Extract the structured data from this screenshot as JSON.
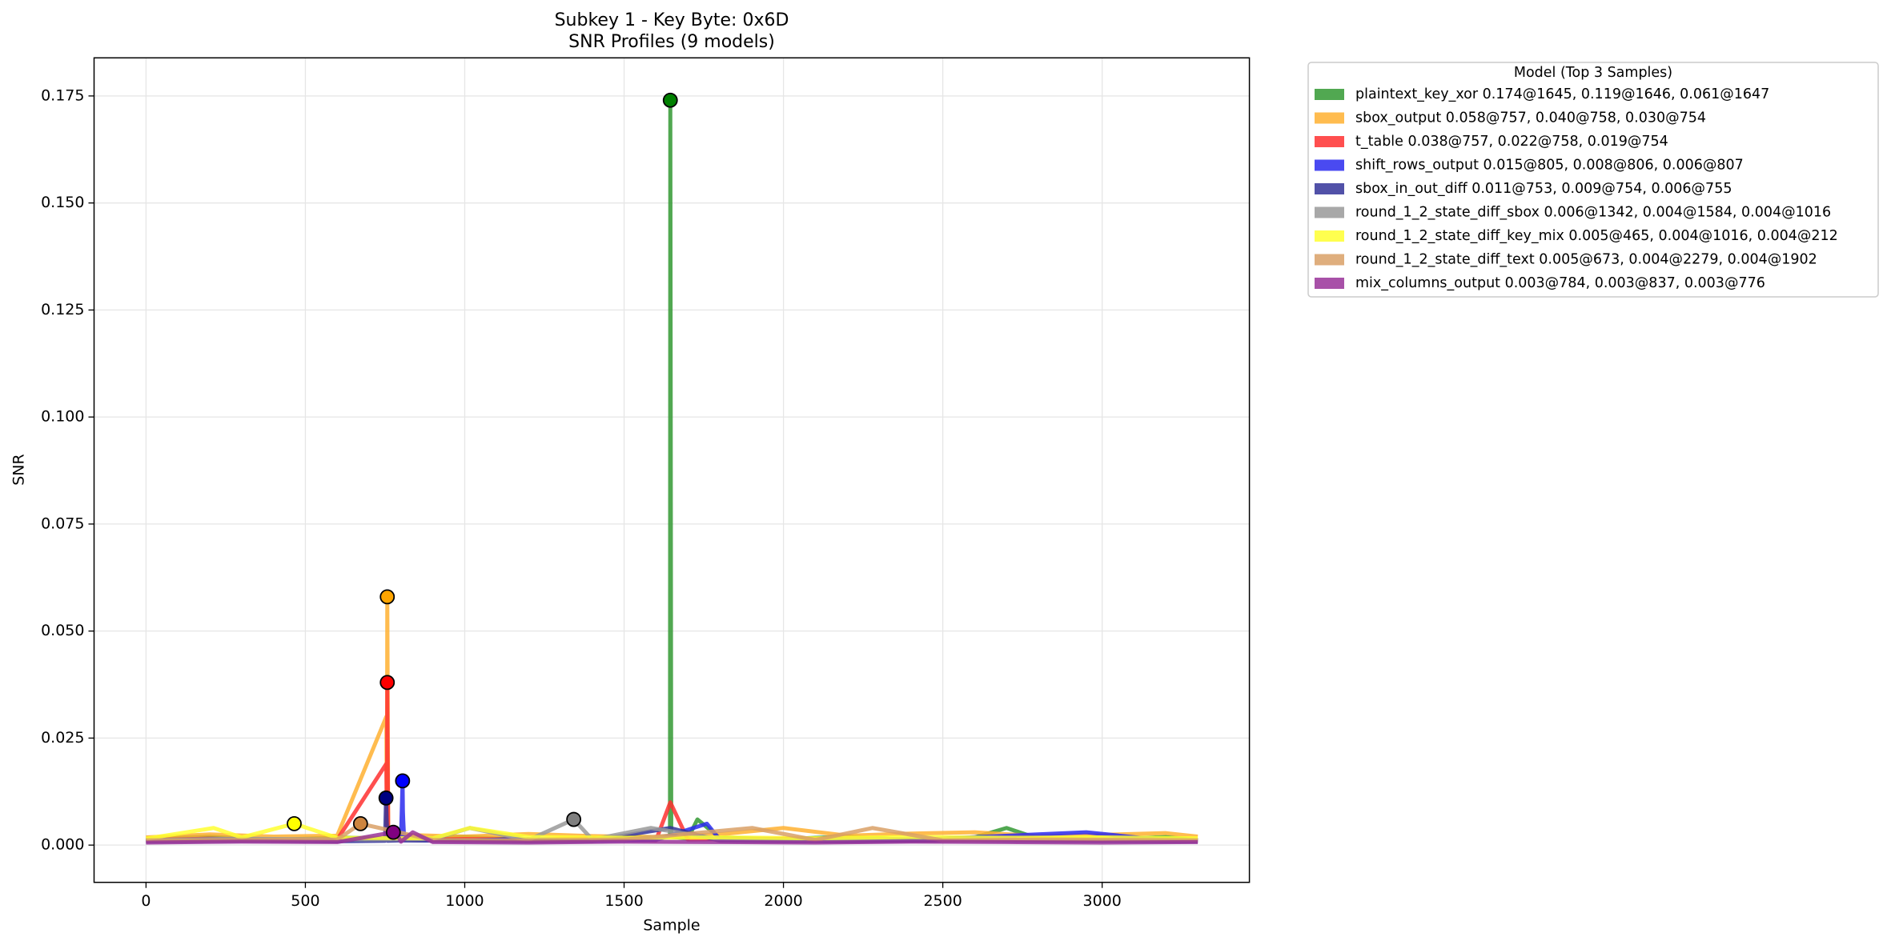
{
  "chart_data": {
    "type": "line",
    "title": "Subkey 1 - Key Byte: 0x6D",
    "subtitle": "SNR Profiles (9 models)",
    "x_label": "Sample",
    "y_label": "SNR",
    "legend_title": "Model (Top 3 Samples)",
    "legend_position": "outside-right",
    "grid": true,
    "xlim": [
      -163,
      3462
    ],
    "ylim": [
      -0.0087,
      0.1839
    ],
    "xticks": [
      0,
      500,
      1000,
      1500,
      2000,
      2500,
      3000
    ],
    "yticks": [
      {
        "value": 0,
        "label": "0.000"
      },
      0.025,
      {
        "value": 0.05,
        "label": "0.050"
      },
      0.075,
      {
        "value": 0.1,
        "label": "0.100"
      },
      0.125,
      {
        "value": 0.15,
        "label": "0.150"
      },
      0.175
    ],
    "series": [
      {
        "name": "plaintext_key_xor 0.174@1645, 0.119@1646, 0.061@1647",
        "color": "#339933",
        "marker_color": "#008000",
        "x": [
          0,
          200,
          400,
          600,
          800,
          1000,
          1200,
          1400,
          1600,
          1644,
          1645,
          1646,
          1647,
          1648,
          1700,
          1730,
          1800,
          2000,
          2200,
          2400,
          2600,
          2700,
          2800,
          3000,
          3200,
          3300
        ],
        "values": [
          0.0015,
          0.002,
          0.0012,
          0.0018,
          0.0014,
          0.002,
          0.0011,
          0.0016,
          0.0019,
          0.002,
          0.174,
          0.119,
          0.061,
          0.002,
          0.0015,
          0.006,
          0.0017,
          0.0014,
          0.002,
          0.0012,
          0.0018,
          0.004,
          0.0015,
          0.0013,
          0.0019,
          0.0012
        ]
      },
      {
        "name": "sbox_output 0.058@757, 0.040@758, 0.030@754",
        "color": "#ffb030",
        "marker_color": "#ffa500",
        "x": [
          0,
          200,
          400,
          600,
          754,
          756,
          757,
          758,
          760,
          800,
          1000,
          1200,
          1400,
          1600,
          1800,
          2000,
          2200,
          2400,
          2600,
          2800,
          3000,
          3200,
          3300
        ],
        "values": [
          0.0018,
          0.0025,
          0.002,
          0.0022,
          0.03,
          0.002,
          0.058,
          0.04,
          0.002,
          0.0024,
          0.002,
          0.0026,
          0.0021,
          0.0019,
          0.0025,
          0.004,
          0.0022,
          0.0027,
          0.003,
          0.0021,
          0.0024,
          0.0028,
          0.002
        ]
      },
      {
        "name": "t_table 0.038@757, 0.022@758, 0.019@754",
        "color": "#ff3030",
        "marker_color": "#ff0000",
        "x": [
          0,
          200,
          400,
          600,
          754,
          756,
          757,
          758,
          760,
          800,
          1000,
          1200,
          1400,
          1600,
          1645,
          1700,
          2000,
          2400,
          2800,
          3200,
          3300
        ],
        "values": [
          0.0012,
          0.0015,
          0.0011,
          0.0013,
          0.019,
          0.002,
          0.038,
          0.022,
          0.0015,
          0.0012,
          0.0014,
          0.0013,
          0.0016,
          0.0011,
          0.01,
          0.0013,
          0.0015,
          0.0012,
          0.0014,
          0.0013,
          0.0011
        ]
      },
      {
        "name": "shift_rows_output 0.015@805, 0.008@806, 0.006@807",
        "color": "#2a2aee",
        "marker_color": "#0000ff",
        "x": [
          0,
          200,
          400,
          600,
          800,
          805,
          806,
          807,
          810,
          1000,
          1200,
          1400,
          1600,
          1760,
          1800,
          2000,
          2400,
          2950,
          3200,
          3300
        ],
        "values": [
          0.001,
          0.0013,
          0.0011,
          0.0012,
          0.0015,
          0.015,
          0.008,
          0.006,
          0.0012,
          0.0011,
          0.0014,
          0.001,
          0.0012,
          0.005,
          0.0013,
          0.0011,
          0.0012,
          0.003,
          0.0011,
          0.001
        ]
      },
      {
        "name": "sbox_in_out_diff 0.011@753, 0.009@754, 0.006@755",
        "color": "#333399",
        "marker_color": "#000080",
        "x": [
          0,
          200,
          400,
          600,
          750,
          753,
          754,
          755,
          758,
          800,
          1000,
          1200,
          1400,
          1645,
          1800,
          2200,
          2600,
          3000,
          3300
        ],
        "values": [
          0.0009,
          0.001,
          0.0011,
          0.0009,
          0.001,
          0.011,
          0.009,
          0.006,
          0.001,
          0.0011,
          0.001,
          0.0009,
          0.001,
          0.004,
          0.001,
          0.0009,
          0.0011,
          0.001,
          0.0009
        ]
      },
      {
        "name": "round_1_2_state_diff_sbox 0.006@1342, 0.004@1584, 0.004@1016",
        "color": "#999999",
        "marker_color": "#808080",
        "x": [
          0,
          300,
          600,
          900,
          1016,
          1200,
          1342,
          1400,
          1584,
          1800,
          2100,
          2400,
          2700,
          3000,
          3300
        ],
        "values": [
          0.0012,
          0.0015,
          0.0013,
          0.0014,
          0.004,
          0.0012,
          0.006,
          0.0013,
          0.004,
          0.0014,
          0.0012,
          0.0015,
          0.0013,
          0.0014,
          0.0012
        ]
      },
      {
        "name": "round_1_2_state_diff_key_mix 0.005@465, 0.004@1016, 0.004@212",
        "color": "#ffff30",
        "marker_color": "#ffff00",
        "x": [
          0,
          212,
          300,
          465,
          600,
          900,
          1016,
          1200,
          1500,
          1800,
          2100,
          2400,
          2700,
          3000,
          3300
        ],
        "values": [
          0.0015,
          0.004,
          0.0018,
          0.005,
          0.0017,
          0.0016,
          0.004,
          0.0019,
          0.0017,
          0.0018,
          0.0016,
          0.0019,
          0.0017,
          0.0018,
          0.0016
        ]
      },
      {
        "name": "round_1_2_state_diff_text 0.005@673, 0.004@2279, 0.004@1902",
        "color": "#d9a066",
        "marker_color": "#cd853f",
        "x": [
          0,
          300,
          600,
          673,
          900,
          1200,
          1500,
          1902,
          2100,
          2279,
          2500,
          2800,
          3100,
          3300
        ],
        "values": [
          0.0011,
          0.0012,
          0.0013,
          0.005,
          0.0012,
          0.0011,
          0.0013,
          0.004,
          0.0012,
          0.004,
          0.0011,
          0.0013,
          0.0012,
          0.0011
        ]
      },
      {
        "name": "mix_columns_output 0.003@784, 0.003@837, 0.003@776",
        "color": "#993399",
        "marker_color": "#800080",
        "x": [
          0,
          300,
          600,
          776,
          784,
          800,
          837,
          900,
          1200,
          1500,
          1800,
          2100,
          2400,
          2700,
          3000,
          3300
        ],
        "values": [
          0.0006,
          0.0008,
          0.0007,
          0.003,
          0.003,
          0.0008,
          0.003,
          0.0007,
          0.0006,
          0.0008,
          0.0007,
          0.0006,
          0.0008,
          0.0007,
          0.0006,
          0.0007
        ]
      }
    ]
  }
}
